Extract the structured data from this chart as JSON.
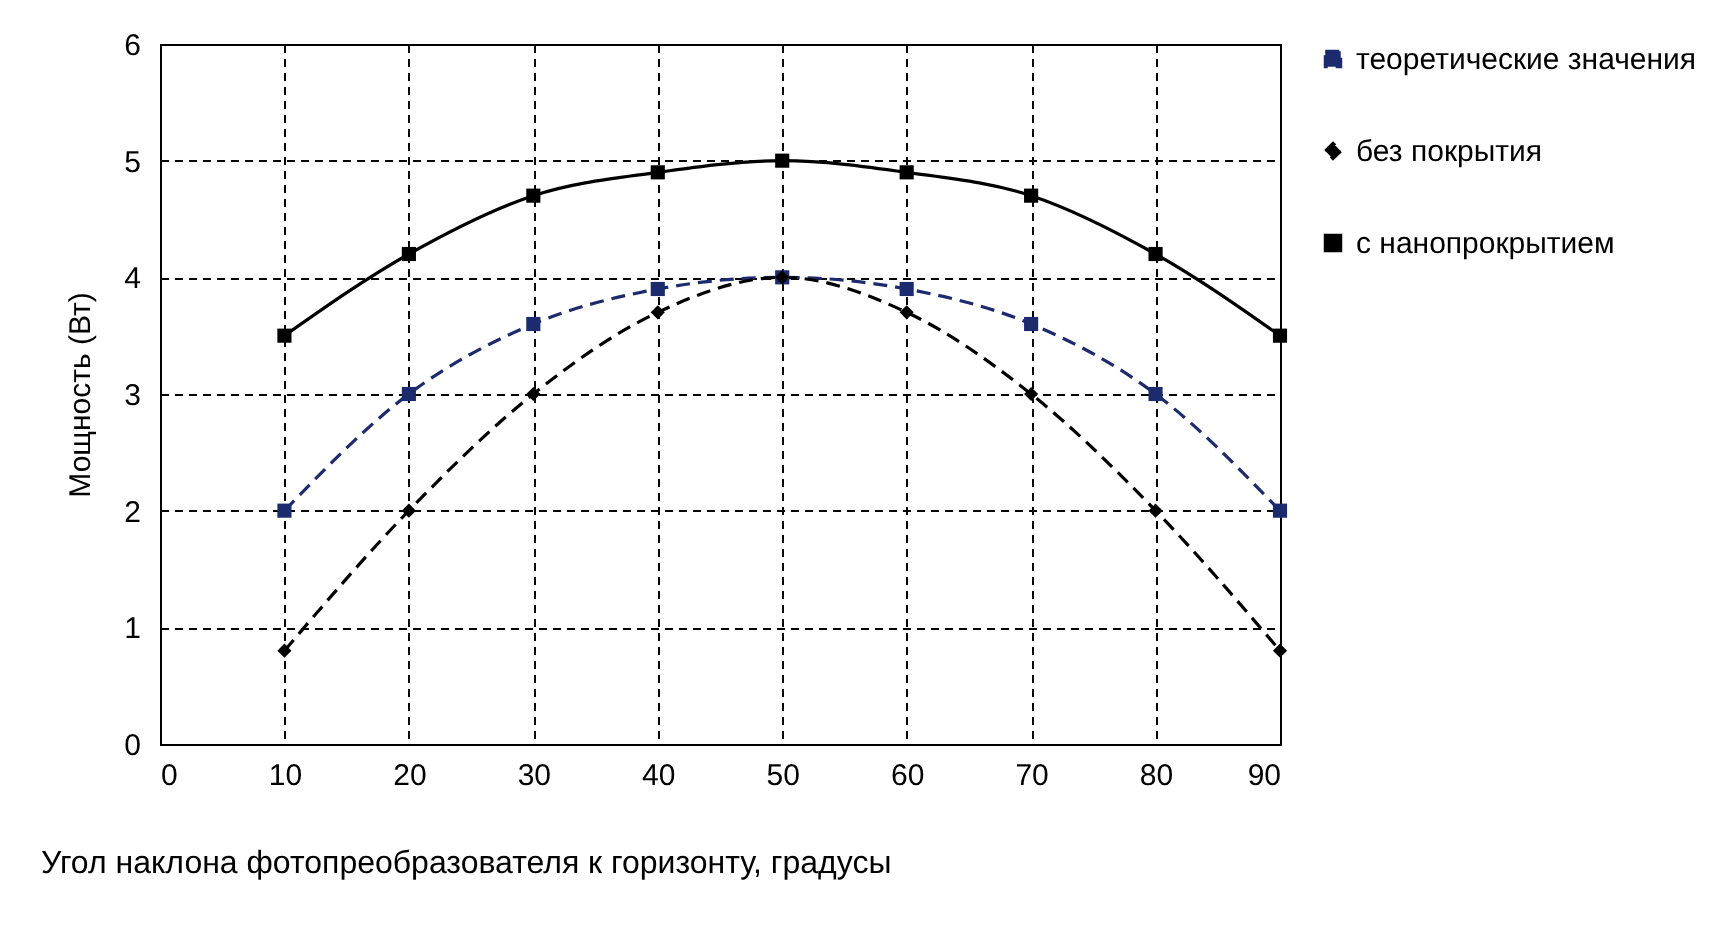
{
  "chart_data": {
    "type": "line",
    "xlabel": "Угол наклона фотопреобразователя к горизонту, градусы",
    "ylabel": "Мощность (Вт)",
    "x": [
      10,
      20,
      30,
      40,
      50,
      60,
      70,
      80,
      90
    ],
    "series": [
      {
        "name": "теоретические значения",
        "color": "#1c2a6e",
        "marker": "square",
        "line_style": "dashed",
        "values": [
          2,
          3,
          3.6,
          3.9,
          4,
          3.9,
          3.6,
          3,
          2
        ]
      },
      {
        "name": "без покрытия",
        "color": "#000000",
        "marker": "diamond",
        "line_style": "dashed",
        "values": [
          0.8,
          2,
          3,
          3.7,
          4,
          3.7,
          3,
          2,
          0.8
        ]
      },
      {
        "name": "с нанопрокрытием",
        "color": "#000000",
        "marker": "square",
        "line_style": "solid",
        "values": [
          3.5,
          4.2,
          4.7,
          4.9,
          5,
          4.9,
          4.7,
          4.2,
          3.5
        ]
      }
    ],
    "xlim": [
      0,
      90
    ],
    "xticks": [
      0,
      10,
      20,
      30,
      40,
      50,
      60,
      70,
      80,
      90
    ],
    "ylim": [
      0,
      6
    ],
    "yticks": [
      0,
      1,
      2,
      3,
      4,
      5,
      6
    ],
    "grid": true,
    "legend": "right"
  }
}
